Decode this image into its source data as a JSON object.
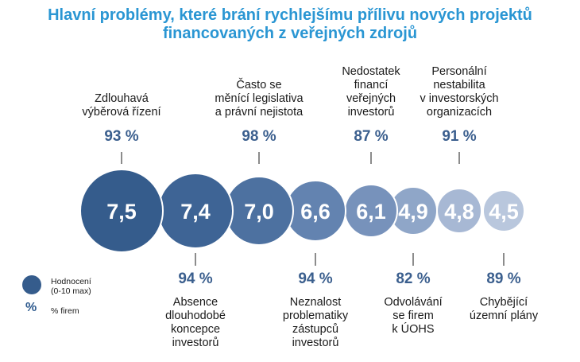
{
  "title": {
    "line1": "Hlavní problémy, které brání rychlejšímu přílivu nových projektů",
    "line2": "financovaných z veřejných zdrojů"
  },
  "legend": {
    "rating_line1": "Hodnocení",
    "rating_line2": "(0-10 max)",
    "pct_symbol": "%",
    "pct_label": "% firem"
  },
  "colors": {
    "title": "#2a96d3",
    "bubbles": [
      "#355c8c",
      "#3e6495",
      "#4d71a0",
      "#6383b0",
      "#7792bb",
      "#8fa6c8",
      "#a7b8d4",
      "#b9c7dd"
    ],
    "percent": "#3b5f8e"
  },
  "chart_data": {
    "type": "bubble",
    "categories": [
      [
        "Zdlouhavá",
        "výběrová řízení"
      ],
      [
        "Absence",
        "dlouhodobé",
        "koncepce",
        "investorů"
      ],
      [
        "Často se",
        "měnící legislativa",
        "a právní nejistota"
      ],
      [
        "Neznalost",
        "problematiky",
        "zástupců",
        "investorů"
      ],
      [
        "Nedostatek",
        "financí",
        "veřejných",
        "investorů"
      ],
      [
        "Odvolávání",
        "se firem",
        "k ÚOHS"
      ],
      [
        "Personální",
        "nestabilita",
        "v investorských",
        "organizacích"
      ],
      [
        "Chybějící",
        "územní plány"
      ]
    ],
    "ratings": [
      "7,5",
      "7,4",
      "7,0",
      "6,6",
      "6,1",
      "4,9",
      "4,8",
      "4,5"
    ],
    "percent_firms": [
      "93 %",
      "94 %",
      "98 %",
      "94 %",
      "87 %",
      "82 %",
      "91 %",
      "89 %"
    ],
    "label_position": [
      "top",
      "bottom",
      "top",
      "bottom",
      "top",
      "bottom",
      "top",
      "bottom"
    ]
  }
}
